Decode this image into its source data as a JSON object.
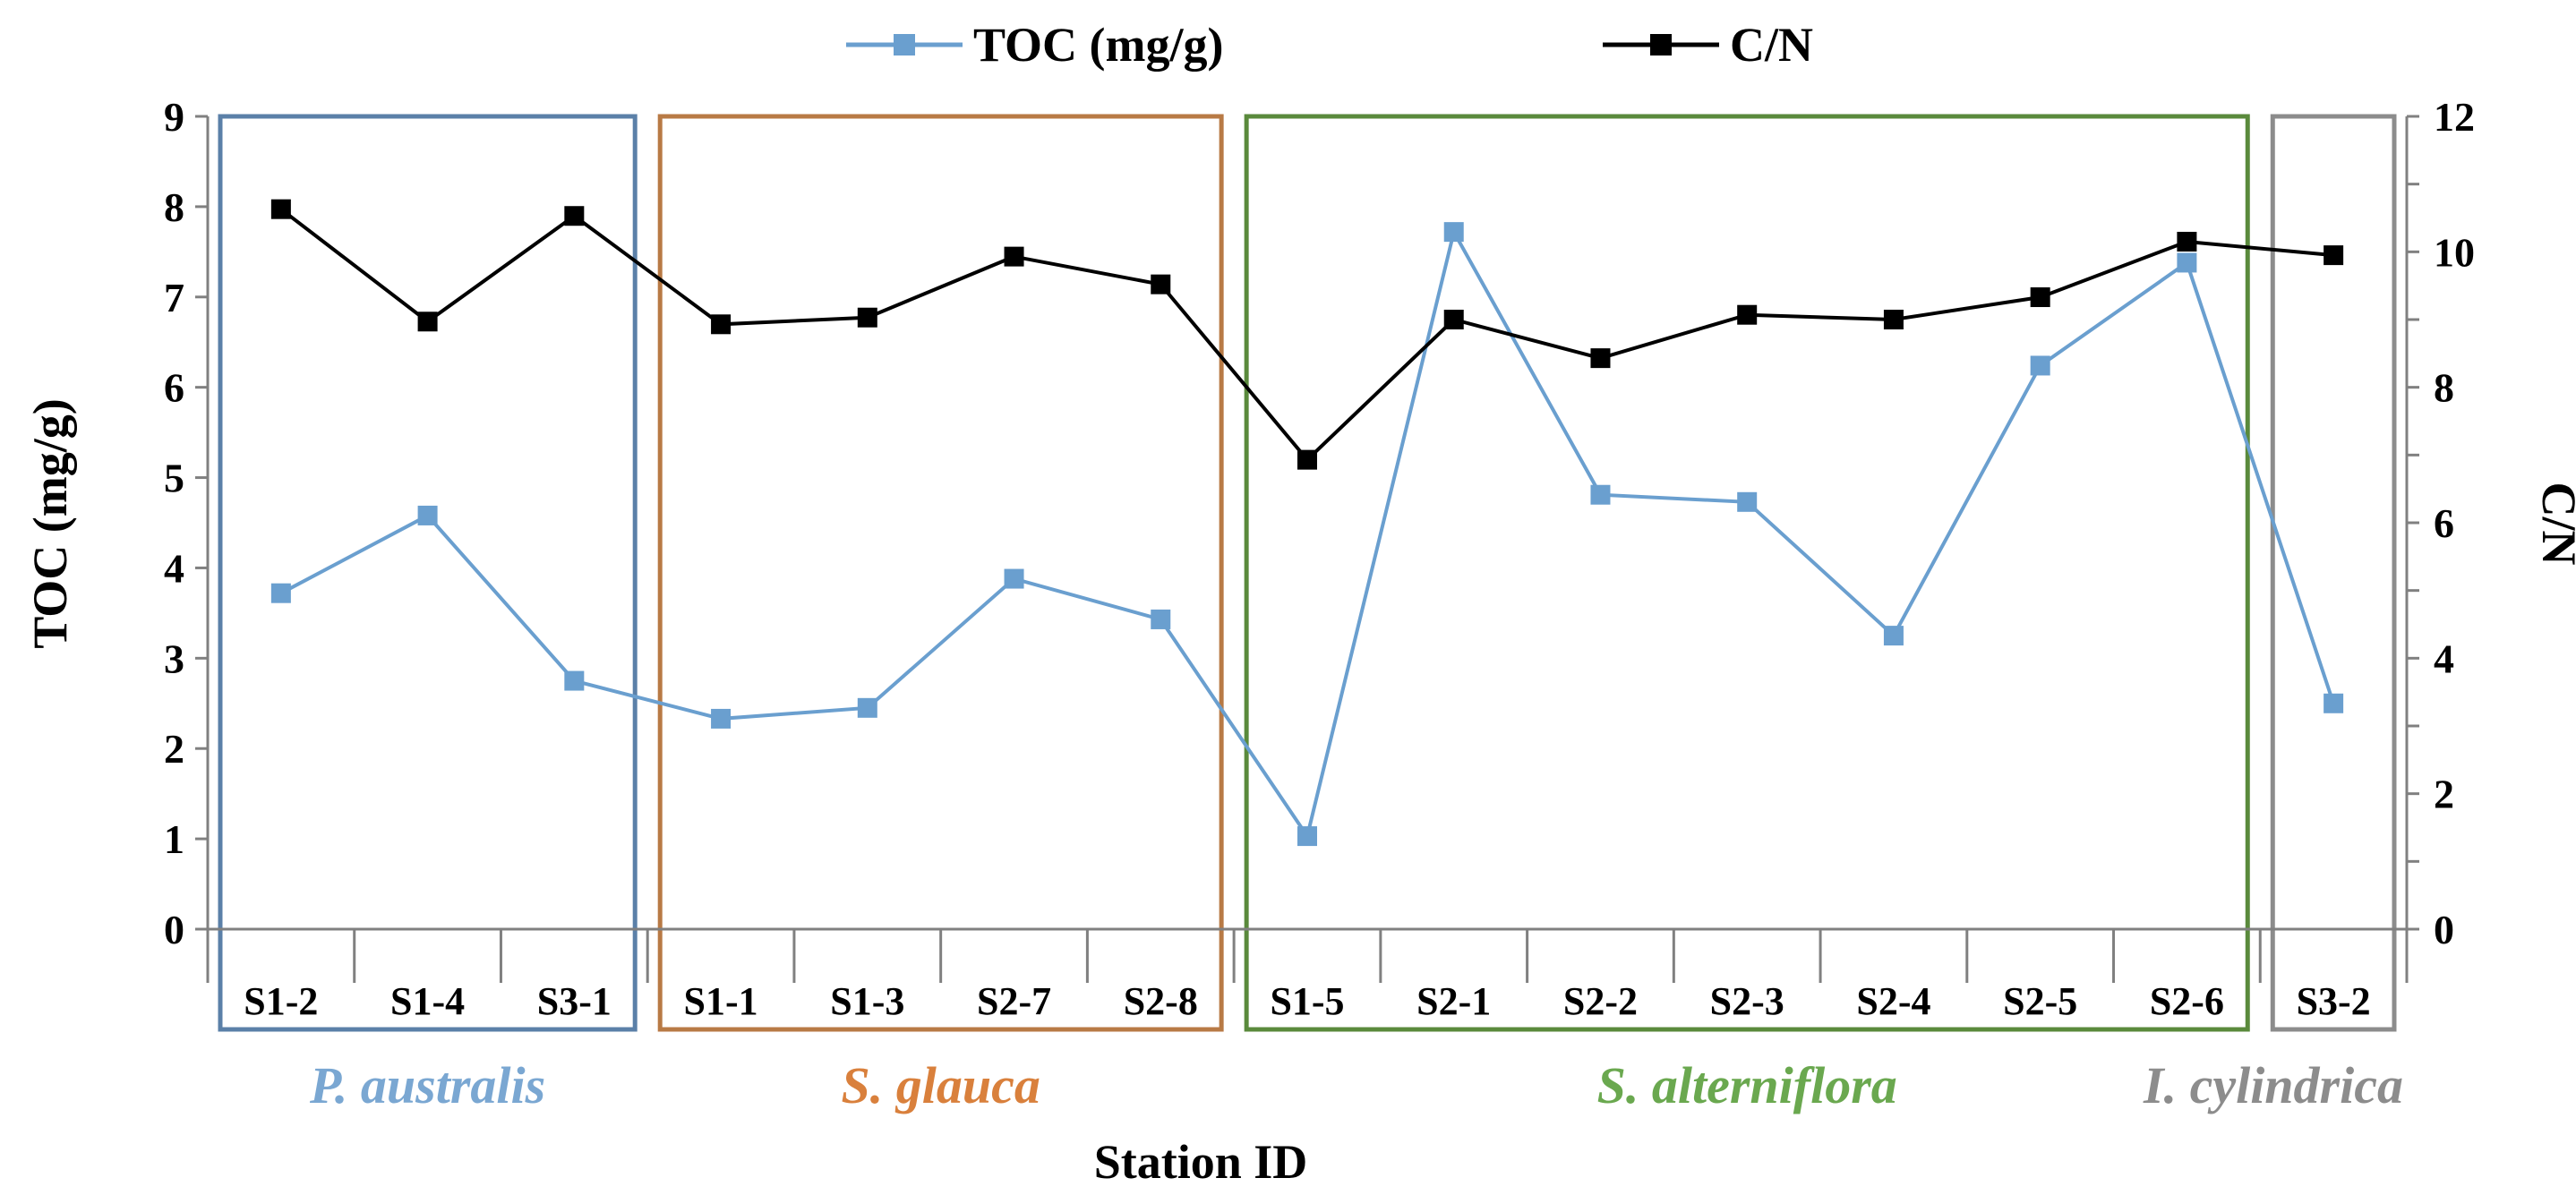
{
  "chart_data": {
    "type": "line",
    "title": "",
    "xlabel": "Station ID",
    "ylabel": "TOC (mg/g)",
    "y2label": "C/N",
    "categories": [
      "S1-2",
      "S1-4",
      "S3-1",
      "S1-1",
      "S1-3",
      "S2-7",
      "S2-8",
      "S1-5",
      "S2-1",
      "S2-2",
      "S2-3",
      "S2-4",
      "S2-5",
      "S2-6",
      "S3-2"
    ],
    "ylim": [
      0,
      9
    ],
    "y2lim": [
      0,
      12
    ],
    "yticks": [
      "0",
      "1",
      "2",
      "3",
      "4",
      "5",
      "6",
      "7",
      "8",
      "9"
    ],
    "y2ticks": [
      "0",
      "2",
      "4",
      "6",
      "8",
      "10",
      "12"
    ],
    "legend_position": "top-center",
    "series": [
      {
        "name": "TOC (mg/g)",
        "axis": "left",
        "color": "#6a9fcf",
        "values": [
          3.72,
          4.58,
          2.75,
          2.33,
          2.45,
          3.88,
          3.43,
          1.03,
          7.72,
          4.81,
          4.73,
          3.25,
          6.24,
          7.38,
          2.5
        ]
      },
      {
        "name": "C/N",
        "axis": "right",
        "color": "#000000",
        "values": [
          10.63,
          8.97,
          10.53,
          8.93,
          9.03,
          9.93,
          9.52,
          6.93,
          9.0,
          8.43,
          9.07,
          9.0,
          9.33,
          10.15,
          9.95
        ]
      }
    ],
    "groups": [
      {
        "label": "P. australis",
        "color": "#5b80a8",
        "label_color": "#7aa7d2",
        "start": 0,
        "end": 2
      },
      {
        "label": "S. glauca",
        "color": "#b87a45",
        "label_color": "#d9803c",
        "start": 3,
        "end": 6
      },
      {
        "label": "S. alterniflora",
        "color": "#5a8a3c",
        "label_color": "#6aa84f",
        "start": 7,
        "end": 13
      },
      {
        "label": "I. cylindrica",
        "color": "#8c8c8c",
        "label_color": "#8c8c8c",
        "start": 14,
        "end": 14
      }
    ]
  }
}
